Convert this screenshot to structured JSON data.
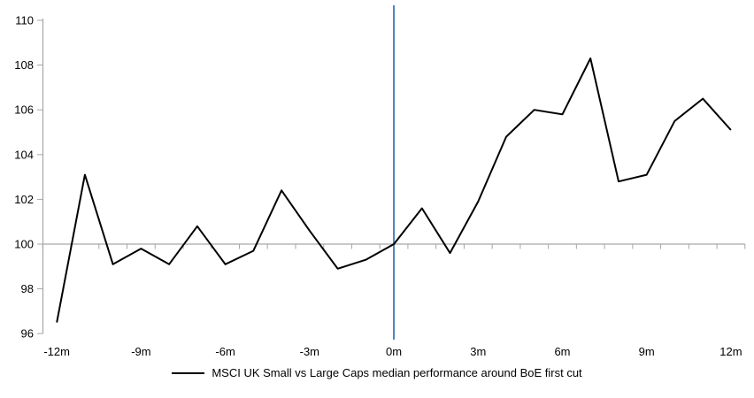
{
  "chart_data": {
    "type": "line",
    "title": "",
    "x_unit": "months relative to first cut",
    "x_months": [
      -12,
      -11,
      -10,
      -9,
      -8,
      -7,
      -6,
      -5,
      -4,
      -3,
      -2,
      -1,
      0,
      1,
      2,
      3,
      4,
      5,
      6,
      7,
      8,
      9,
      10,
      11,
      12
    ],
    "series": [
      {
        "name": "MSCI UK Small vs Large Caps median performance around BoE first cut",
        "color": "#000000",
        "values": [
          96.5,
          103.1,
          99.1,
          99.8,
          99.1,
          100.8,
          99.1,
          99.7,
          102.4,
          100.6,
          98.9,
          99.3,
          100.0,
          101.6,
          99.6,
          101.9,
          104.8,
          106.0,
          105.8,
          108.3,
          102.8,
          103.1,
          105.5,
          106.5,
          105.1
        ]
      }
    ],
    "x_ticks": [
      {
        "month": -12,
        "label": "-12m"
      },
      {
        "month": -9,
        "label": "-9m"
      },
      {
        "month": -6,
        "label": "-6m"
      },
      {
        "month": -3,
        "label": "-3m"
      },
      {
        "month": 0,
        "label": "0m"
      },
      {
        "month": 3,
        "label": "3m"
      },
      {
        "month": 6,
        "label": "6m"
      },
      {
        "month": 9,
        "label": "9m"
      },
      {
        "month": 12,
        "label": "12m"
      }
    ],
    "y_ticks": [
      96,
      98,
      100,
      102,
      104,
      106,
      108,
      110
    ],
    "ylim": [
      96,
      110
    ],
    "xlim_months": [
      -12.5,
      12.5
    ],
    "baseline_value": 100,
    "event_line": {
      "month": 0,
      "color": "#4F81BD"
    },
    "axis_color": "#A6A6A6",
    "text_color": "#000000",
    "grid": "off",
    "legend": {
      "position": "bottom",
      "entries": [
        {
          "label": "MSCI UK Small vs Large Caps median performance around BoE first cut",
          "color": "#000000"
        }
      ]
    }
  }
}
